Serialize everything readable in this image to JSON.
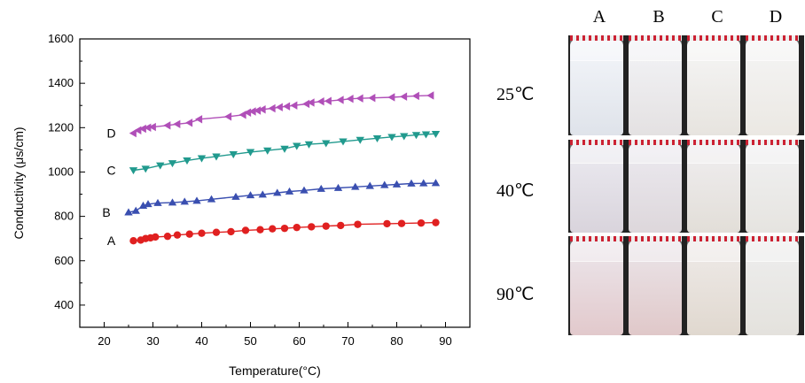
{
  "chart_data": {
    "type": "line",
    "title": "",
    "xlabel": "Temperature(°C)",
    "ylabel": "Conductivity (μs/cm)",
    "xlim": [
      15,
      95
    ],
    "ylim": [
      300,
      1600
    ],
    "xticks": [
      20,
      30,
      40,
      50,
      60,
      70,
      80,
      90
    ],
    "yticks": [
      400,
      600,
      800,
      1000,
      1200,
      1400,
      1600
    ],
    "grid": false,
    "series": [
      {
        "name": "A",
        "color": "#e02020",
        "marker": "circle",
        "x": [
          26,
          27.5,
          28.5,
          29.5,
          30.5,
          33,
          35,
          37.5,
          40,
          43,
          46,
          49,
          52,
          54.5,
          57,
          59.5,
          62.5,
          65.5,
          68.5,
          72,
          78,
          81,
          85,
          88
        ],
        "y": [
          690,
          693,
          700,
          703,
          707,
          710,
          716,
          720,
          724,
          728,
          731,
          737,
          740,
          744,
          746,
          750,
          753,
          756,
          759,
          764,
          767,
          768,
          770,
          772
        ]
      },
      {
        "name": "B",
        "color": "#3a4fb0",
        "marker": "triangle-up",
        "x": [
          25,
          26.5,
          28,
          29,
          31,
          34,
          36.5,
          39,
          42,
          47,
          50,
          52.5,
          55.5,
          58,
          61,
          64.5,
          68,
          71.5,
          74.5,
          77.5,
          80,
          83,
          85.5,
          88
        ],
        "y": [
          818,
          825,
          848,
          855,
          860,
          862,
          866,
          870,
          877,
          888,
          895,
          898,
          906,
          912,
          917,
          924,
          928,
          933,
          937,
          941,
          944,
          948,
          949,
          950
        ]
      },
      {
        "name": "C",
        "color": "#219a8e",
        "marker": "triangle-down",
        "x": [
          26,
          28.5,
          31.5,
          34,
          37,
          40,
          43,
          46.5,
          50,
          53.5,
          57,
          59.5,
          62,
          65.5,
          69,
          72.5,
          76,
          79,
          81.5,
          84,
          86,
          88
        ],
        "y": [
          1008,
          1015,
          1030,
          1040,
          1052,
          1062,
          1070,
          1080,
          1090,
          1097,
          1105,
          1118,
          1125,
          1130,
          1138,
          1145,
          1152,
          1158,
          1162,
          1167,
          1170,
          1172
        ]
      },
      {
        "name": "D",
        "color": "#b04fb8",
        "marker": "triangle-left",
        "x": [
          26,
          27,
          28,
          29,
          30,
          33,
          35,
          37.5,
          39.5,
          45.5,
          48.5,
          49.5,
          50.5,
          51.5,
          52.5,
          54.5,
          56,
          57.5,
          59,
          61.5,
          62.5,
          64.5,
          66,
          68.5,
          70.5,
          72.5,
          75,
          79,
          81.5,
          84,
          87
        ],
        "y": [
          1175,
          1188,
          1195,
          1200,
          1203,
          1210,
          1216,
          1222,
          1238,
          1250,
          1258,
          1268,
          1273,
          1277,
          1282,
          1287,
          1292,
          1296,
          1300,
          1307,
          1313,
          1318,
          1320,
          1325,
          1330,
          1332,
          1334,
          1337,
          1340,
          1343,
          1345
        ]
      }
    ]
  },
  "photos": {
    "columns": [
      "A",
      "B",
      "C",
      "D"
    ],
    "rows": [
      "25℃",
      "40℃",
      "90℃"
    ]
  }
}
